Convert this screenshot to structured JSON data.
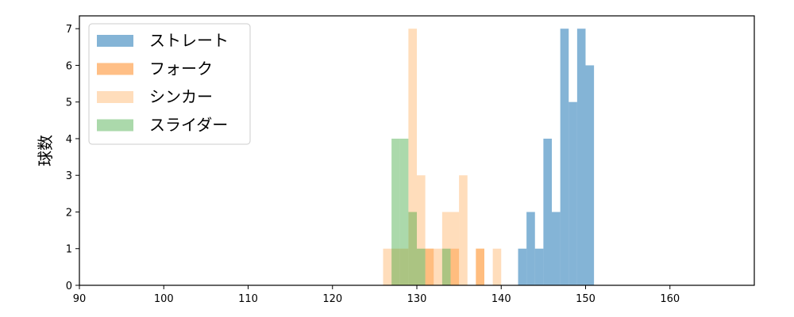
{
  "chart_data": {
    "type": "bar",
    "subtype": "histogram",
    "title": "",
    "xlabel": "",
    "ylabel": "球数",
    "xlim": [
      90,
      170
    ],
    "ylim": [
      0,
      7.35
    ],
    "xticks": [
      90,
      100,
      110,
      120,
      130,
      140,
      150,
      160
    ],
    "yticks": [
      0,
      1,
      2,
      3,
      4,
      5,
      6,
      7
    ],
    "grid": false,
    "legend": "top-left",
    "series": [
      {
        "name": "ストレート",
        "color": "#1f77b4",
        "opacity": 0.55,
        "bins": [
          {
            "x0": 142,
            "x1": 143,
            "value": 1
          },
          {
            "x0": 143,
            "x1": 144,
            "value": 2
          },
          {
            "x0": 144,
            "x1": 145,
            "value": 1
          },
          {
            "x0": 145,
            "x1": 146,
            "value": 4
          },
          {
            "x0": 146,
            "x1": 147,
            "value": 2
          },
          {
            "x0": 147,
            "x1": 148,
            "value": 7
          },
          {
            "x0": 148,
            "x1": 149,
            "value": 5
          },
          {
            "x0": 149,
            "x1": 150,
            "value": 7
          },
          {
            "x0": 150,
            "x1": 151,
            "value": 6
          }
        ]
      },
      {
        "name": "フォーク",
        "color": "#ff7f0e",
        "opacity": 0.5,
        "bins": [
          {
            "x0": 131,
            "x1": 132,
            "value": 1
          },
          {
            "x0": 134,
            "x1": 135,
            "value": 1
          },
          {
            "x0": 137,
            "x1": 138,
            "value": 1
          }
        ]
      },
      {
        "name": "シンカー",
        "color": "#ffbb78",
        "opacity": 0.5,
        "bins": [
          {
            "x0": 126,
            "x1": 127,
            "value": 1
          },
          {
            "x0": 127,
            "x1": 128,
            "value": 1
          },
          {
            "x0": 128,
            "x1": 129,
            "value": 1
          },
          {
            "x0": 129,
            "x1": 130,
            "value": 7
          },
          {
            "x0": 130,
            "x1": 131,
            "value": 3
          },
          {
            "x0": 131,
            "x1": 132,
            "value": 1
          },
          {
            "x0": 132,
            "x1": 133,
            "value": 1
          },
          {
            "x0": 133,
            "x1": 134,
            "value": 2
          },
          {
            "x0": 134,
            "x1": 135,
            "value": 2
          },
          {
            "x0": 135,
            "x1": 136,
            "value": 3
          },
          {
            "x0": 137,
            "x1": 138,
            "value": 1
          },
          {
            "x0": 139,
            "x1": 140,
            "value": 1
          }
        ]
      },
      {
        "name": "スライダー",
        "color": "#2ca02c",
        "opacity": 0.4,
        "bins": [
          {
            "x0": 127,
            "x1": 128,
            "value": 4
          },
          {
            "x0": 128,
            "x1": 129,
            "value": 4
          },
          {
            "x0": 129,
            "x1": 130,
            "value": 2
          },
          {
            "x0": 130,
            "x1": 131,
            "value": 1
          },
          {
            "x0": 133,
            "x1": 134,
            "value": 1
          }
        ]
      }
    ]
  }
}
